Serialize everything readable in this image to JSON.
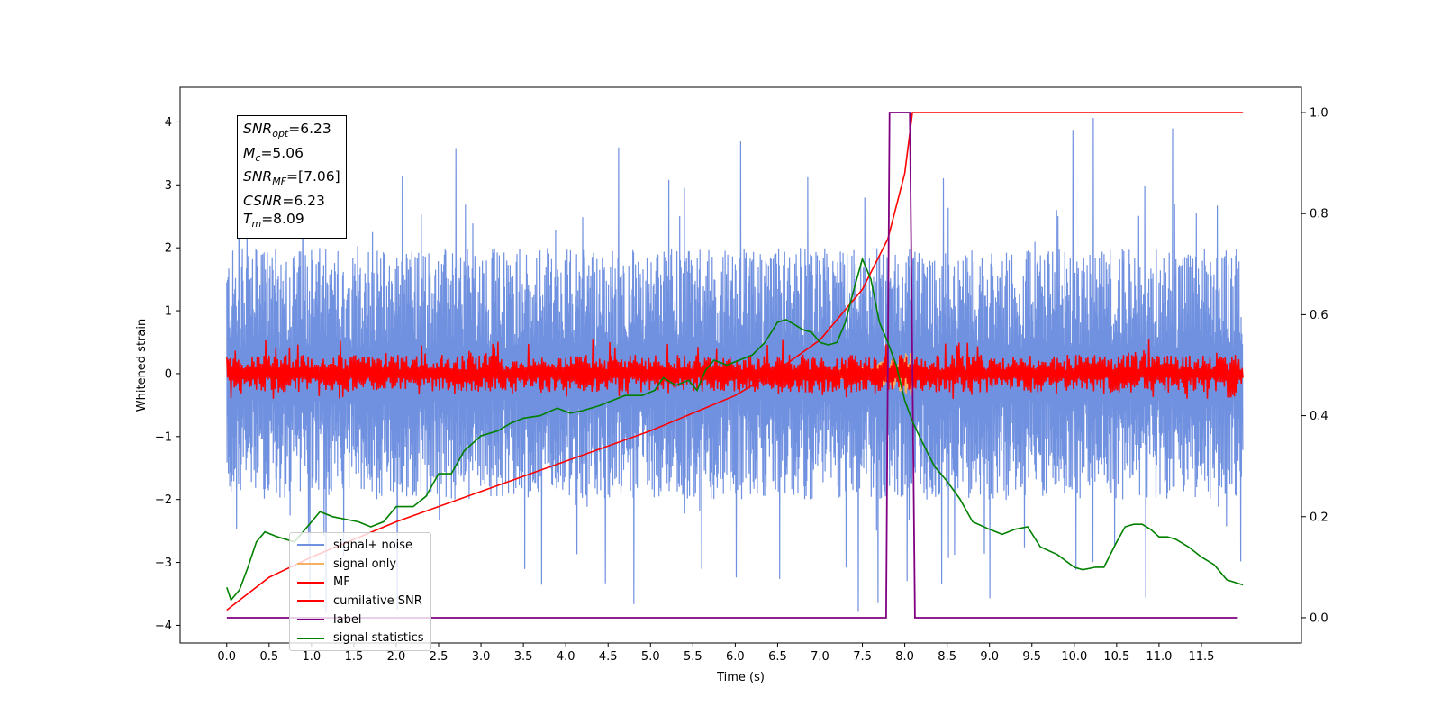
{
  "chart_data": {
    "type": "line",
    "xlabel": "Time (s)",
    "ylabel": "Whitened strain",
    "xlim": [
      -0.55,
      12.68
    ],
    "ylim": [
      -4.28,
      4.55
    ],
    "y2lim": [
      -0.05,
      1.05
    ],
    "x_ticks": [
      0.0,
      0.5,
      1.0,
      1.5,
      2.0,
      2.5,
      3.0,
      3.5,
      4.0,
      4.5,
      5.0,
      5.5,
      6.0,
      6.5,
      7.0,
      7.5,
      8.0,
      8.5,
      9.0,
      9.5,
      10.0,
      10.5,
      11.0,
      11.5
    ],
    "x_tick_labels": [
      "0.0",
      "0.5",
      "1.0",
      "1.5",
      "2.0",
      "2.5",
      "3.0",
      "3.5",
      "4.0",
      "4.5",
      "5.0",
      "5.5",
      "6.0",
      "6.5",
      "7.0",
      "7.5",
      "8.0",
      "8.5",
      "9.0",
      "9.5",
      "10.0",
      "10.5",
      "11.0",
      "11.5"
    ],
    "y_ticks": [
      -4,
      -3,
      -2,
      -1,
      0,
      1,
      2,
      3,
      4
    ],
    "y_tick_labels": [
      "−4",
      "−3",
      "−2",
      "−1",
      "0",
      "1",
      "2",
      "3",
      "4"
    ],
    "y2_ticks": [
      0.0,
      0.2,
      0.4,
      0.6,
      0.8,
      1.0
    ],
    "y2_tick_labels": [
      "0.0",
      "0.2",
      "0.4",
      "0.6",
      "0.8",
      "1.0"
    ],
    "grid": false,
    "legend_position": "lower-left",
    "series": [
      {
        "name": "signal+ noise",
        "axis": "left",
        "color": "#7090e0",
        "style": "dense noise",
        "x_range": [
          0.0,
          11.99
        ],
        "band_low": -2.0,
        "band_high": 2.0,
        "peak_max": 4.18,
        "peak_min": -3.88
      },
      {
        "name": "signal only",
        "axis": "left",
        "color": "#f5b060",
        "style": "chirp",
        "x": [
          6.8,
          7.2,
          7.5,
          7.7,
          7.9,
          8.0,
          8.09
        ],
        "amplitude": [
          0.05,
          0.08,
          0.12,
          0.18,
          0.26,
          0.32,
          0.36
        ]
      },
      {
        "name": "MF",
        "axis": "left",
        "color": "#ff0000",
        "style": "dense noise",
        "x_range": [
          0.0,
          11.99
        ],
        "band_low": -0.3,
        "band_high": 0.3,
        "peak_max": 0.55,
        "peak_min": -0.4
      },
      {
        "name": "cumilative SNR",
        "axis": "right",
        "color": "#ff0000",
        "x": [
          0.0,
          0.5,
          1.0,
          2.0,
          3.0,
          4.0,
          5.0,
          6.0,
          6.5,
          7.0,
          7.5,
          7.8,
          8.0,
          8.09,
          8.5,
          9.0,
          10.0,
          11.0,
          11.99
        ],
        "y": [
          0.015,
          0.08,
          0.12,
          0.19,
          0.25,
          0.31,
          0.37,
          0.44,
          0.49,
          0.55,
          0.65,
          0.75,
          0.88,
          1.0,
          1.0,
          1.0,
          1.0,
          1.0,
          1.0
        ]
      },
      {
        "name": "label",
        "axis": "right",
        "color": "#800080",
        "x": [
          0.0,
          7.78,
          7.82,
          8.06,
          8.12,
          11.93
        ],
        "y": [
          0.0,
          0.0,
          1.0,
          1.0,
          0.0,
          0.0
        ]
      },
      {
        "name": "signal statistics",
        "axis": "right",
        "color": "#008000",
        "x": [
          0.0,
          0.05,
          0.15,
          0.25,
          0.35,
          0.45,
          0.6,
          0.8,
          1.0,
          1.1,
          1.25,
          1.4,
          1.55,
          1.7,
          1.85,
          2.0,
          2.2,
          2.35,
          2.5,
          2.65,
          2.8,
          3.0,
          3.2,
          3.35,
          3.5,
          3.7,
          3.9,
          4.05,
          4.2,
          4.4,
          4.55,
          4.7,
          4.9,
          5.05,
          5.15,
          5.3,
          5.45,
          5.55,
          5.65,
          5.75,
          5.9,
          6.05,
          6.2,
          6.35,
          6.5,
          6.6,
          6.7,
          6.8,
          6.9,
          7.0,
          7.1,
          7.2,
          7.3,
          7.4,
          7.5,
          7.6,
          7.7,
          7.8,
          7.9,
          8.0,
          8.1,
          8.2,
          8.35,
          8.5,
          8.65,
          8.8,
          9.0,
          9.15,
          9.3,
          9.45,
          9.6,
          9.8,
          10.0,
          10.1,
          10.25,
          10.35,
          10.5,
          10.6,
          10.7,
          10.8,
          10.9,
          11.0,
          11.1,
          11.2,
          11.35,
          11.5,
          11.65,
          11.8,
          11.99
        ],
        "y": [
          0.06,
          0.035,
          0.055,
          0.1,
          0.15,
          0.17,
          0.16,
          0.15,
          0.19,
          0.21,
          0.2,
          0.195,
          0.19,
          0.18,
          0.19,
          0.22,
          0.22,
          0.24,
          0.285,
          0.285,
          0.33,
          0.36,
          0.37,
          0.385,
          0.395,
          0.4,
          0.415,
          0.405,
          0.41,
          0.42,
          0.43,
          0.44,
          0.44,
          0.45,
          0.475,
          0.46,
          0.47,
          0.45,
          0.49,
          0.51,
          0.5,
          0.51,
          0.52,
          0.545,
          0.585,
          0.59,
          0.58,
          0.57,
          0.565,
          0.545,
          0.54,
          0.545,
          0.585,
          0.65,
          0.71,
          0.67,
          0.585,
          0.545,
          0.5,
          0.43,
          0.385,
          0.35,
          0.3,
          0.27,
          0.235,
          0.19,
          0.175,
          0.165,
          0.175,
          0.18,
          0.14,
          0.125,
          0.1,
          0.095,
          0.1,
          0.1,
          0.15,
          0.18,
          0.185,
          0.185,
          0.175,
          0.16,
          0.16,
          0.155,
          0.14,
          0.12,
          0.105,
          0.075,
          0.065
        ]
      }
    ],
    "annotation": {
      "lines": [
        {
          "sym": "SNR",
          "sub": "opt",
          "val": "=6.23"
        },
        {
          "sym": "M",
          "sub": "c",
          "val": "=5.06"
        },
        {
          "sym": "SNR",
          "sub": "MF",
          "val": "=[7.06]"
        },
        {
          "sym": "CSNR",
          "sub": "",
          "val": "=6.23"
        },
        {
          "sym": "T",
          "sub": "m",
          "val": "=8.09"
        }
      ]
    }
  }
}
